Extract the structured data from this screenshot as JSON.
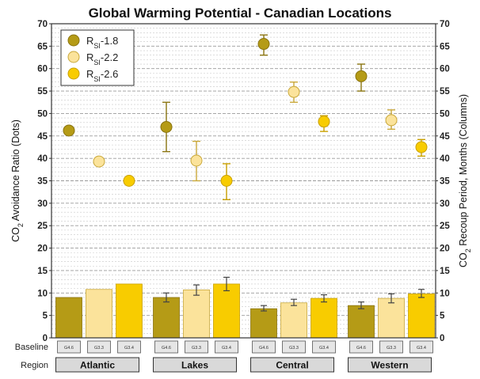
{
  "chart_data": {
    "type": "bar",
    "title": "Global Warming Potential - Canadian Locations",
    "ylabel_left": "CO2 Avoidance Ratio (Dots)",
    "ylabel_right": "CO2 Recoup Period, Months (Columns)",
    "ylim": [
      0,
      70
    ],
    "yticks": [
      0,
      5,
      10,
      15,
      20,
      25,
      30,
      35,
      40,
      45,
      50,
      55,
      60,
      65,
      70
    ],
    "grid": true,
    "legend_position": "top-left",
    "row_labels": {
      "baseline": "Baseline",
      "region": "Region"
    },
    "regions": [
      "Atlantic",
      "Lakes",
      "Central",
      "Western"
    ],
    "baselines": [
      [
        "G4.6",
        "G3.3",
        "G3.4"
      ],
      [
        "G4.6",
        "G3.3",
        "G3.4"
      ],
      [
        "G4.6",
        "G3.3",
        "G3.4"
      ],
      [
        "G4.6",
        "G3.3",
        "G3.4"
      ]
    ],
    "series": [
      {
        "name": "RSI-1.8",
        "label_main": "R",
        "label_sub": "SI",
        "label_tail": "-1.8",
        "color": "#b59b16",
        "stroke": "#8a7410",
        "dots": [
          46.2,
          47.0,
          65.5,
          58.3
        ],
        "dot_err": [
          [
            46.2,
            46.2
          ],
          [
            41.5,
            52.5
          ],
          [
            63.0,
            67.5
          ],
          [
            55.0,
            61.0
          ]
        ],
        "bars": [
          9.0,
          9.0,
          6.5,
          7.2
        ],
        "bar_err": [
          null,
          [
            8.0,
            10.0
          ],
          [
            6.0,
            7.2
          ],
          [
            6.5,
            8.0
          ]
        ]
      },
      {
        "name": "RSI-2.2",
        "label_main": "R",
        "label_sub": "SI",
        "label_tail": "-2.2",
        "color": "#fbe39b",
        "stroke": "#c9a83a",
        "dots": [
          39.3,
          39.5,
          54.8,
          48.5
        ],
        "dot_err": [
          [
            39.3,
            39.3
          ],
          [
            35.0,
            43.8
          ],
          [
            52.5,
            57.0
          ],
          [
            46.5,
            50.8
          ]
        ],
        "bars": [
          10.8,
          10.7,
          7.8,
          8.8
        ],
        "bar_err": [
          null,
          [
            9.5,
            11.8
          ],
          [
            7.2,
            8.6
          ],
          [
            7.8,
            9.8
          ]
        ]
      },
      {
        "name": "RSI-2.6",
        "label_main": "R",
        "label_sub": "SI",
        "label_tail": "-2.6",
        "color": "#f8cc00",
        "stroke": "#c9a000",
        "dots": [
          35.0,
          35.0,
          48.2,
          42.5
        ],
        "dot_err": [
          [
            35.0,
            35.0
          ],
          [
            30.8,
            38.8
          ],
          [
            46.0,
            49.5
          ],
          [
            40.5,
            44.2
          ]
        ],
        "bars": [
          12.0,
          12.0,
          8.8,
          9.8
        ],
        "bar_err": [
          null,
          [
            10.5,
            13.5
          ],
          [
            8.0,
            9.6
          ],
          [
            9.0,
            10.8
          ]
        ]
      }
    ]
  }
}
